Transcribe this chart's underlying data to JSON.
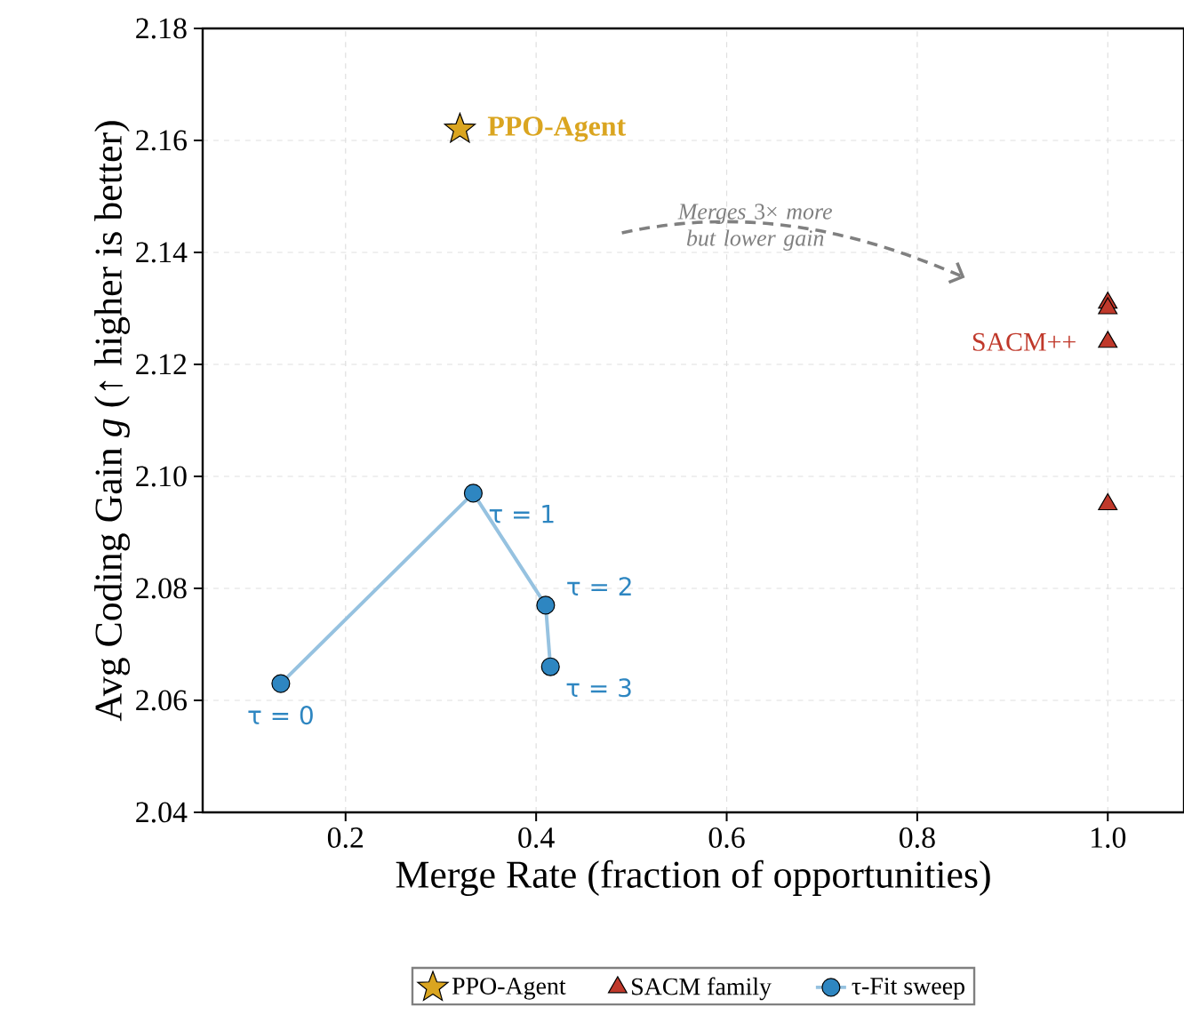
{
  "chart_data": {
    "type": "scatter",
    "xlabel": "Merge Rate (fraction of opportunities)",
    "ylabel": "Avg Coding Gain *g* (↑  higher is better)",
    "xlim": [
      0.05,
      1.08
    ],
    "xticks": [
      {
        "value": 0.2,
        "label": "0.2"
      },
      {
        "value": 0.4,
        "label": "0.4"
      },
      {
        "value": 0.6,
        "label": "0.6"
      },
      {
        "value": 0.8,
        "label": "0.8"
      },
      {
        "value": 1.0,
        "label": "1.0"
      }
    ],
    "ylim": [
      2.04,
      2.18
    ],
    "yticks": [
      {
        "value": 2.04,
        "label": "2.04"
      },
      {
        "value": 2.06,
        "label": "2.06"
      },
      {
        "value": 2.08,
        "label": "2.08"
      },
      {
        "value": 2.1,
        "label": "2.10"
      },
      {
        "value": 2.12,
        "label": "2.12"
      },
      {
        "value": 2.14,
        "label": "2.14"
      },
      {
        "value": 2.16,
        "label": "2.16"
      },
      {
        "value": 2.18,
        "label": "2.18"
      }
    ],
    "grid": true,
    "legend": "bottom",
    "series": [
      {
        "name": "PPO-Agent",
        "type": "scatter",
        "marker": "star",
        "color": "#daa520",
        "x": [
          0.32
        ],
        "values": [
          2.162
        ]
      },
      {
        "name": "SACM family",
        "type": "scatter",
        "marker": "triangle",
        "color": "#c0392b",
        "x": [
          1.0,
          1.0,
          1.0,
          1.0
        ],
        "values": [
          2.131,
          2.13,
          2.124,
          2.095
        ]
      },
      {
        "name": "τ-Fit sweep",
        "type": "line",
        "marker": "circle",
        "color": "#2e86c1",
        "x": [
          0.132,
          0.334,
          0.41,
          0.415
        ],
        "values": [
          2.063,
          2.097,
          2.077,
          2.066
        ]
      }
    ],
    "annotations": [
      {
        "text": "PPO-Agent",
        "x": 0.32,
        "y": 2.162
      },
      {
        "text": "SACM++",
        "x": 1.0,
        "y": 2.124
      },
      {
        "text": "τ = 0",
        "x": 0.132,
        "y": 2.063
      },
      {
        "text": "τ = 1",
        "x": 0.334,
        "y": 2.097
      },
      {
        "text": "τ = 2",
        "x": 0.41,
        "y": 2.077
      },
      {
        "text": "τ = 3",
        "x": 0.415,
        "y": 2.066
      },
      "*Merges* 3× *more*\n*but lower gain*"
    ]
  }
}
